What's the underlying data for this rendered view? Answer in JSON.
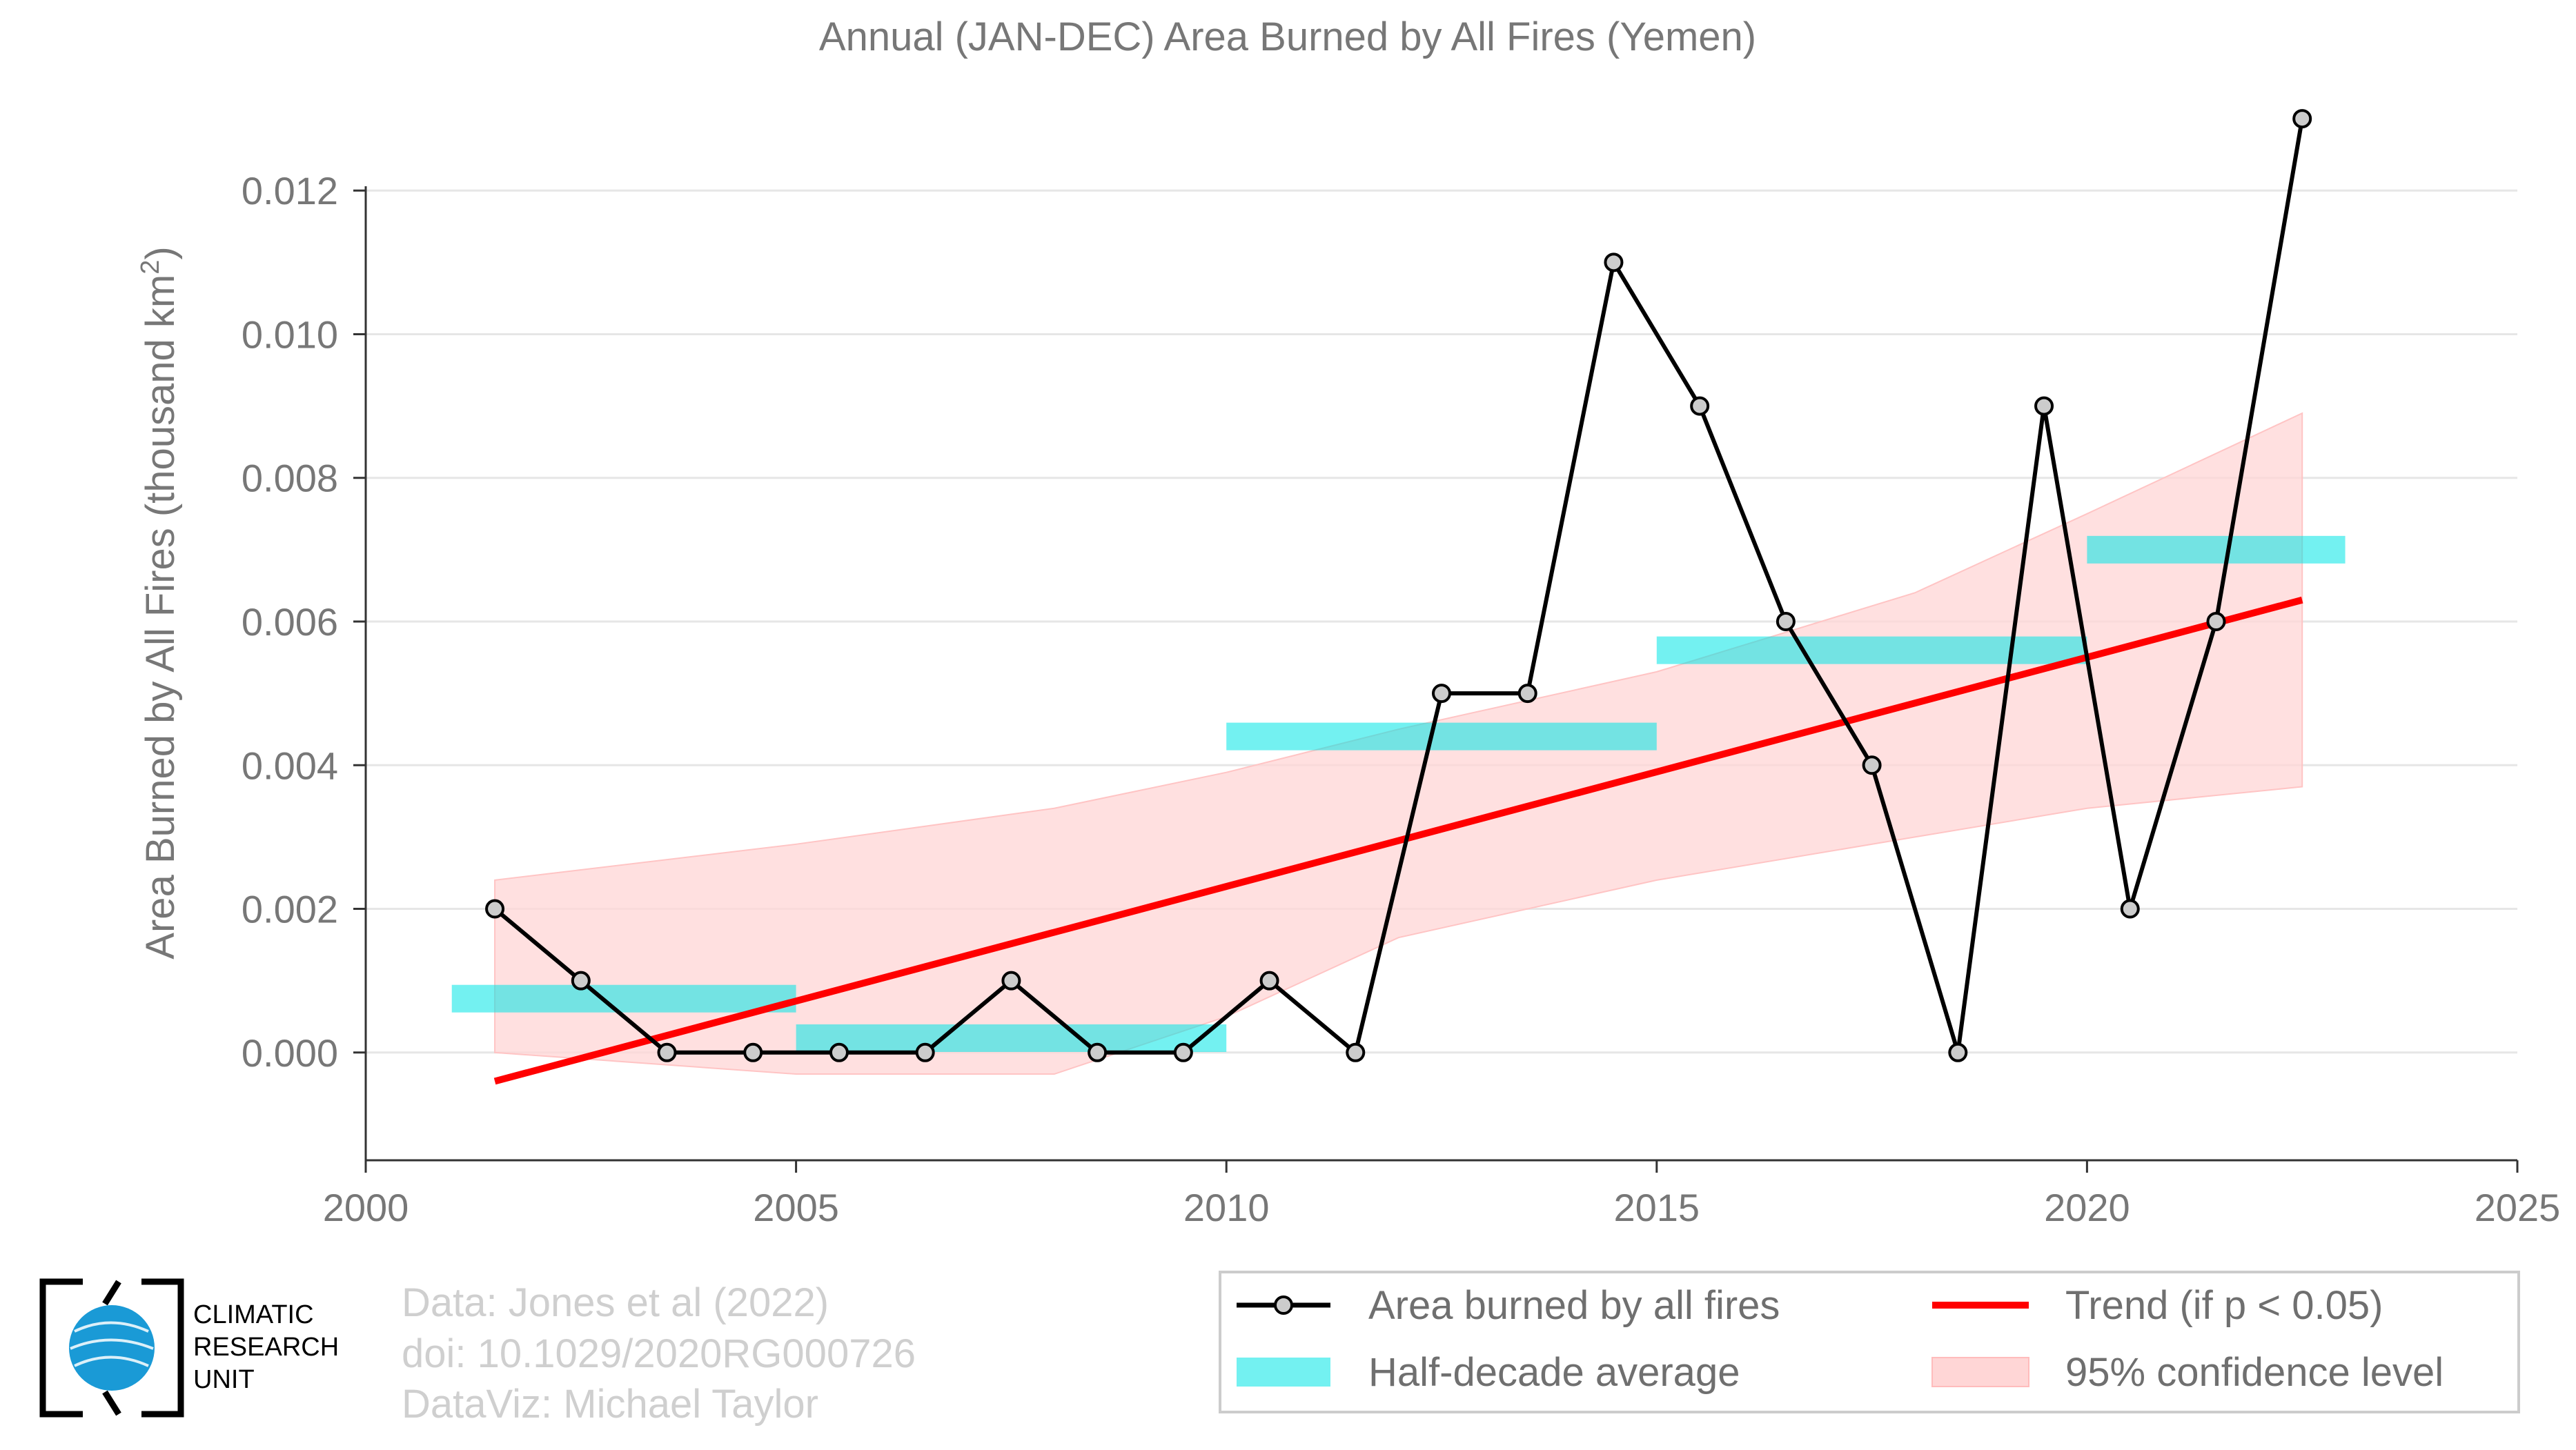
{
  "chart_data": {
    "type": "line",
    "title": "Annual (JAN-DEC) Area Burned by All Fires (Yemen)",
    "xlabel": "",
    "ylabel": "Area Burned by All Fires (thousand km",
    "ylabel_sup": "2",
    "ylabel_close": ")",
    "xlim": [
      2000,
      2025
    ],
    "ylim": [
      -0.0015,
      0.0135
    ],
    "x_ticks": [
      2000,
      2005,
      2010,
      2015,
      2020,
      2025
    ],
    "x_tick_labels": [
      "2000",
      "2005",
      "2010",
      "2015",
      "2020",
      "2025"
    ],
    "y_ticks": [
      0,
      0.002,
      0.004,
      0.006,
      0.008,
      0.01,
      0.012
    ],
    "y_tick_labels": [
      "0.000",
      "0.002",
      "0.004",
      "0.006",
      "0.008",
      "0.010",
      "0.012"
    ],
    "grid": true,
    "legend_position": "bottom-right",
    "series": [
      {
        "name": "Area burned by all fires",
        "type": "line-markers",
        "color": "#000000",
        "marker_fill": "#cccccc",
        "x": [
          2001.5,
          2002.5,
          2003.5,
          2004.5,
          2005.5,
          2006.5,
          2007.5,
          2008.5,
          2009.5,
          2010.5,
          2011.5,
          2012.5,
          2013.5,
          2014.5,
          2015.5,
          2016.5,
          2017.5,
          2018.5,
          2019.5,
          2020.5,
          2021.5,
          2022.5
        ],
        "values": [
          0.002,
          0.001,
          0.0,
          0.0,
          0.0,
          0.0,
          0.001,
          0.0,
          0.0,
          0.001,
          0.0,
          0.005,
          0.005,
          0.011,
          0.009,
          0.006,
          0.004,
          0.0,
          0.009,
          0.002,
          0.006,
          0.013
        ]
      },
      {
        "name": "Half-decade average",
        "type": "segments",
        "color": "#00e5e5",
        "segments": [
          {
            "x0": 2001,
            "x1": 2005,
            "value": 0.00075
          },
          {
            "x0": 2005,
            "x1": 2010,
            "value": 0.0002
          },
          {
            "x0": 2010,
            "x1": 2015,
            "value": 0.0044
          },
          {
            "x0": 2015,
            "x1": 2020,
            "value": 0.0056
          },
          {
            "x0": 2020,
            "x1": 2023,
            "value": 0.007
          }
        ]
      },
      {
        "name": "Trend (if p < 0.05)",
        "type": "line",
        "color": "#ff0000",
        "x": [
          2001.5,
          2022.5
        ],
        "values": [
          -0.0004,
          0.0063
        ]
      },
      {
        "name": "95% confidence level",
        "type": "band",
        "color": "#ffd6d6",
        "x": [
          2001.5,
          2005,
          2008,
          2010,
          2012,
          2015,
          2018,
          2020,
          2022.5
        ],
        "lower": [
          0.0,
          -0.0003,
          -0.0003,
          0.0005,
          0.0016,
          0.0024,
          0.003,
          0.0034,
          0.0037
        ],
        "upper": [
          0.0024,
          0.0029,
          0.0034,
          0.0039,
          0.0045,
          0.0053,
          0.0064,
          0.0075,
          0.0089
        ]
      }
    ]
  },
  "credits": {
    "line1": "Data: Jones et al (2022)",
    "line2": "doi: 10.1029/2020RG000726",
    "line3": "DataViz: Michael Taylor"
  },
  "logo": {
    "line1": "CLIMATIC",
    "line2": "RESEARCH",
    "line3": "UNIT",
    "globe_color": "#1a9ad6"
  },
  "legend": {
    "items": [
      "Area burned by all fires",
      "Trend (if p < 0.05)",
      "Half-decade average",
      "95% confidence level"
    ]
  }
}
